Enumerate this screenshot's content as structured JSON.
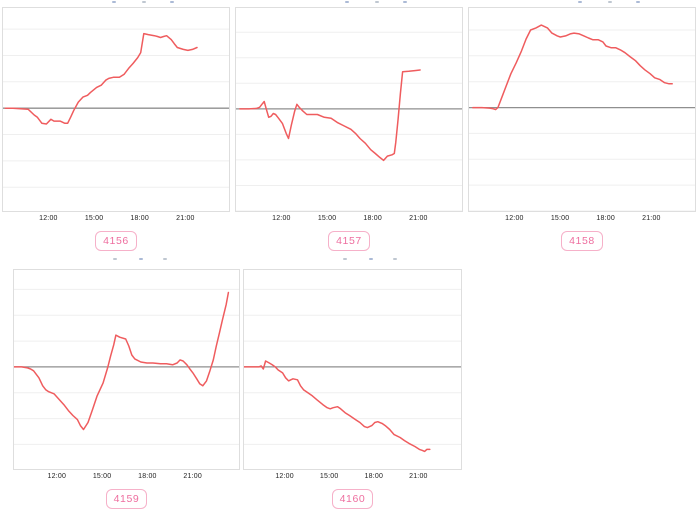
{
  "style": {
    "line_color": "#ef5c5e",
    "zero_line_color": "#8f8f8f",
    "grid_color": "#efefef",
    "panel_border_color": "#dedede",
    "tick_label_color": "#222222",
    "badge_text_color": "#ee6e9f",
    "badge_border_color": "#f6b1c9",
    "background": "#ffffff"
  },
  "chart_data": [
    {
      "type": "line",
      "id": "4156",
      "badge_label": "4156",
      "title_clipped": true,
      "x_axis": {
        "tick_labels": [
          "12:00",
          "15:00",
          "18:00",
          "21:00"
        ],
        "tick_hours": [
          12,
          15,
          18,
          21
        ],
        "range_hours": [
          8.95,
          23.8
        ]
      },
      "y_axis": {
        "range_units": [
          -3.9,
          3.8
        ],
        "gridline_step": 1,
        "zero_line": true,
        "tick_labels_visible": false
      },
      "series": [
        {
          "name": "series-1",
          "x": [
            9.1,
            9.6,
            10.1,
            10.6,
            11.0,
            11.2,
            11.5,
            11.8,
            12.1,
            12.3,
            12.7,
            13.0,
            13.2,
            13.4,
            13.6,
            13.9,
            14.2,
            14.5,
            14.7,
            15.1,
            15.4,
            15.7,
            15.9,
            16.2,
            16.6,
            16.9,
            17.2,
            17.5,
            17.8,
            18.0,
            18.2,
            18.5,
            18.9,
            19.1,
            19.3,
            19.5,
            19.7,
            20.0,
            20.2,
            20.4,
            20.8,
            21.1,
            21.4,
            21.7
          ],
          "y": [
            0,
            0,
            -0.02,
            -0.04,
            -0.26,
            -0.34,
            -0.57,
            -0.6,
            -0.42,
            -0.49,
            -0.49,
            -0.57,
            -0.57,
            -0.34,
            -0.08,
            0.23,
            0.42,
            0.49,
            0.6,
            0.79,
            0.87,
            1.06,
            1.13,
            1.17,
            1.17,
            1.28,
            1.51,
            1.7,
            1.92,
            2.11,
            2.83,
            2.79,
            2.75,
            2.72,
            2.68,
            2.72,
            2.75,
            2.6,
            2.45,
            2.3,
            2.23,
            2.19,
            2.23,
            2.3
          ]
        }
      ]
    },
    {
      "type": "line",
      "id": "4157",
      "badge_label": "4157",
      "title_clipped": true,
      "x_axis": {
        "tick_labels": [
          "12:00",
          "15:00",
          "18:00",
          "21:00"
        ],
        "tick_hours": [
          12,
          15,
          18,
          21
        ],
        "range_hours": [
          8.95,
          23.8
        ]
      },
      "y_axis": {
        "range_units": [
          -4.0,
          3.95
        ],
        "gridline_step": 1,
        "zero_line": true,
        "tick_labels_visible": false
      },
      "series": [
        {
          "name": "series-1",
          "x": [
            9.2,
            9.8,
            10.3,
            10.5,
            10.65,
            10.8,
            10.95,
            11.1,
            11.25,
            11.4,
            11.55,
            11.75,
            12.0,
            12.25,
            12.4,
            12.6,
            12.8,
            12.95,
            13.1,
            13.3,
            13.6,
            13.9,
            14.3,
            14.75,
            15.2,
            15.6,
            16.0,
            16.5,
            16.8,
            17.1,
            17.45,
            17.8,
            18.1,
            18.4,
            18.65,
            18.9,
            19.2,
            19.35,
            19.45,
            19.6,
            19.75,
            19.9,
            20.3,
            20.7,
            21.05
          ],
          "y": [
            0,
            0,
            0.02,
            0.06,
            0.18,
            0.29,
            -0.02,
            -0.33,
            -0.29,
            -0.18,
            -0.22,
            -0.37,
            -0.57,
            -0.96,
            -1.16,
            -0.61,
            -0.1,
            0.18,
            0.06,
            -0.06,
            -0.22,
            -0.22,
            -0.22,
            -0.33,
            -0.37,
            -0.53,
            -0.65,
            -0.8,
            -0.96,
            -1.16,
            -1.35,
            -1.6,
            -1.75,
            -1.9,
            -2.02,
            -1.85,
            -1.8,
            -1.75,
            -1.3,
            -0.4,
            0.6,
            1.45,
            1.47,
            1.5,
            1.52
          ]
        }
      ]
    },
    {
      "type": "line",
      "id": "4158",
      "badge_label": "4158",
      "title_clipped": true,
      "x_axis": {
        "tick_labels": [
          "12:00",
          "15:00",
          "18:00",
          "21:00"
        ],
        "tick_hours": [
          12,
          15,
          18,
          21
        ],
        "range_hours": [
          8.95,
          23.8
        ]
      },
      "y_axis": {
        "range_units": [
          -4.0,
          3.85
        ],
        "gridline_step": 1,
        "zero_line": true,
        "tick_labels_visible": false
      },
      "series": [
        {
          "name": "series-1",
          "x": [
            9.2,
            9.8,
            10.3,
            10.5,
            10.7,
            10.85,
            11.1,
            11.4,
            11.7,
            12.05,
            12.4,
            12.7,
            13.0,
            13.35,
            13.7,
            14.1,
            14.4,
            14.75,
            14.95,
            15.3,
            15.6,
            15.85,
            16.2,
            16.5,
            16.8,
            17.1,
            17.45,
            17.75,
            17.95,
            18.3,
            18.6,
            18.9,
            19.2,
            19.55,
            19.9,
            20.2,
            20.5,
            20.85,
            21.15,
            21.5,
            21.8,
            22.1,
            22.3
          ],
          "y": [
            0,
            0,
            -0.02,
            -0.04,
            -0.08,
            0,
            0.38,
            0.85,
            1.31,
            1.73,
            2.19,
            2.65,
            3.0,
            3.08,
            3.19,
            3.08,
            2.88,
            2.77,
            2.73,
            2.77,
            2.85,
            2.88,
            2.85,
            2.77,
            2.69,
            2.62,
            2.62,
            2.54,
            2.38,
            2.31,
            2.31,
            2.23,
            2.12,
            1.96,
            1.81,
            1.62,
            1.46,
            1.31,
            1.15,
            1.08,
            0.96,
            0.92,
            0.92
          ]
        }
      ]
    },
    {
      "type": "line",
      "id": "4159",
      "badge_label": "4159",
      "title_clipped": true,
      "x_axis": {
        "tick_labels": [
          "12:00",
          "15:00",
          "18:00",
          "21:00"
        ],
        "tick_hours": [
          12,
          15,
          18,
          21
        ],
        "range_hours": [
          9.1,
          24.0
        ]
      },
      "y_axis": {
        "range_units": [
          -3.95,
          3.75
        ],
        "gridline_step": 1,
        "zero_line": true,
        "tick_labels_visible": false
      },
      "series": [
        {
          "name": "series-1",
          "x": [
            9.1,
            9.6,
            10.0,
            10.2,
            10.4,
            10.75,
            11.0,
            11.2,
            11.4,
            11.75,
            12.05,
            12.4,
            12.7,
            13.0,
            13.3,
            13.5,
            13.7,
            14.0,
            14.3,
            14.6,
            15.0,
            15.3,
            15.5,
            15.7,
            15.85,
            16.1,
            16.5,
            16.7,
            16.9,
            17.1,
            17.5,
            17.9,
            18.3,
            18.8,
            19.2,
            19.6,
            19.9,
            20.1,
            20.3,
            20.55,
            20.75,
            20.95,
            21.2,
            21.4,
            21.6,
            21.85,
            22.05,
            22.3,
            22.5,
            22.7,
            22.9,
            23.15,
            23.3
          ],
          "y": [
            0,
            0,
            -0.04,
            -0.08,
            -0.15,
            -0.42,
            -0.73,
            -0.88,
            -0.96,
            -1.04,
            -1.23,
            -1.46,
            -1.69,
            -1.88,
            -2.04,
            -2.27,
            -2.42,
            -2.15,
            -1.65,
            -1.12,
            -0.62,
            -0.04,
            0.42,
            0.85,
            1.23,
            1.15,
            1.08,
            0.81,
            0.46,
            0.31,
            0.19,
            0.15,
            0.15,
            0.12,
            0.12,
            0.08,
            0.15,
            0.27,
            0.23,
            0.08,
            -0.08,
            -0.23,
            -0.46,
            -0.65,
            -0.73,
            -0.54,
            -0.19,
            0.27,
            0.81,
            1.31,
            1.81,
            2.42,
            2.88
          ]
        }
      ]
    },
    {
      "type": "line",
      "id": "4160",
      "badge_label": "4160",
      "title_clipped": true,
      "x_axis": {
        "tick_labels": [
          "12:00",
          "15:00",
          "18:00",
          "21:00"
        ],
        "tick_hours": [
          12,
          15,
          18,
          21
        ],
        "range_hours": [
          9.2,
          23.8
        ]
      },
      "y_axis": {
        "range_units": [
          -3.95,
          3.75
        ],
        "gridline_step": 1,
        "zero_line": true,
        "tick_labels_visible": false
      },
      "series": [
        {
          "name": "series-1",
          "x": [
            9.2,
            9.6,
            10.2,
            10.35,
            10.5,
            10.65,
            10.9,
            11.1,
            11.3,
            11.5,
            11.8,
            12.0,
            12.2,
            12.35,
            12.5,
            12.8,
            13.0,
            13.2,
            13.5,
            13.8,
            14.1,
            14.5,
            14.8,
            15.0,
            15.2,
            15.5,
            15.7,
            16.0,
            16.3,
            16.7,
            17.0,
            17.3,
            17.5,
            17.8,
            18.0,
            18.2,
            18.5,
            18.7,
            19.0,
            19.3,
            19.7,
            20.0,
            20.3,
            20.7,
            21.0,
            21.2,
            21.35,
            21.5,
            21.7
          ],
          "y": [
            0,
            0,
            0,
            0.04,
            -0.08,
            0.23,
            0.15,
            0.08,
            0,
            -0.12,
            -0.23,
            -0.42,
            -0.54,
            -0.5,
            -0.46,
            -0.5,
            -0.73,
            -0.88,
            -1.0,
            -1.12,
            -1.27,
            -1.46,
            -1.58,
            -1.62,
            -1.58,
            -1.54,
            -1.62,
            -1.77,
            -1.88,
            -2.04,
            -2.15,
            -2.31,
            -2.35,
            -2.27,
            -2.15,
            -2.12,
            -2.19,
            -2.27,
            -2.42,
            -2.62,
            -2.73,
            -2.85,
            -2.96,
            -3.08,
            -3.19,
            -3.23,
            -3.27,
            -3.19,
            -3.19
          ]
        }
      ]
    }
  ]
}
